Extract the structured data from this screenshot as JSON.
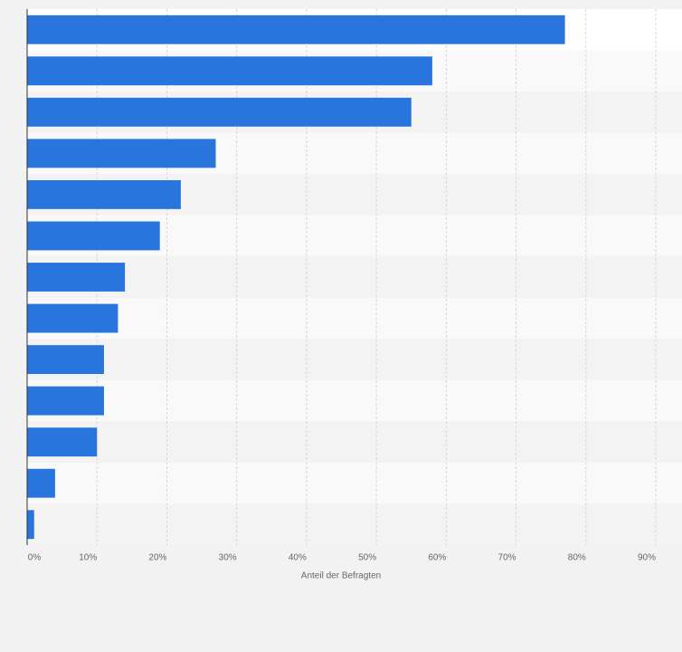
{
  "chart_data": {
    "type": "bar",
    "orientation": "horizontal",
    "xlabel": "Anteil der Befragten",
    "categories": [
      null,
      null,
      null,
      null,
      null,
      null,
      null,
      null,
      null,
      null,
      null,
      null,
      null
    ],
    "values": [
      77,
      58,
      55,
      27,
      22,
      19,
      14,
      13,
      11,
      11,
      10,
      4,
      1
    ],
    "color": "#2876dd",
    "xlim": [
      0,
      90
    ],
    "xticks": [
      {
        "value": 0,
        "label": "0%"
      },
      {
        "value": 10,
        "label": "10%"
      },
      {
        "value": 20,
        "label": "20%"
      },
      {
        "value": 30,
        "label": "30%"
      },
      {
        "value": 40,
        "label": "40%"
      },
      {
        "value": 50,
        "label": "50%"
      },
      {
        "value": 60,
        "label": "60%"
      },
      {
        "value": 70,
        "label": "70%"
      },
      {
        "value": 80,
        "label": "80%"
      },
      {
        "value": 90,
        "label": "90%"
      }
    ],
    "grid": true
  }
}
